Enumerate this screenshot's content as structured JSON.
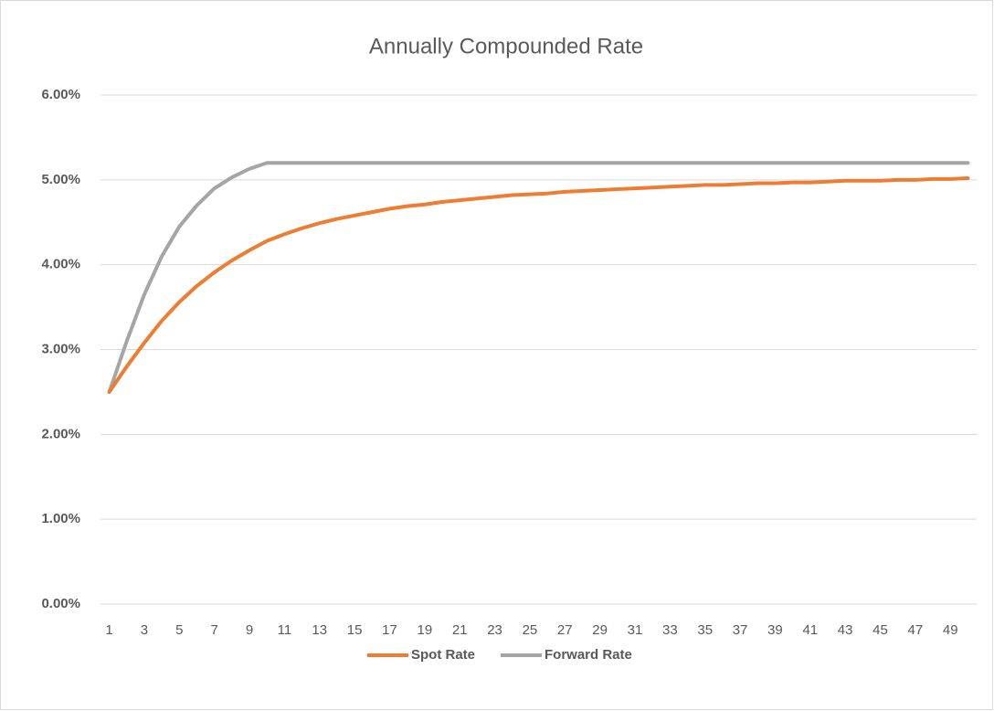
{
  "chart_data": {
    "type": "line",
    "title": "Annually Compounded Rate",
    "categories": [
      "1",
      null,
      "3",
      null,
      "5",
      null,
      "7",
      null,
      "9",
      null,
      "11",
      null,
      "13",
      null,
      "15",
      null,
      "17",
      null,
      "19",
      null,
      "21",
      null,
      "23",
      null,
      "25",
      null,
      "27",
      null,
      "29",
      null,
      "31",
      null,
      "33",
      null,
      "35",
      null,
      "37",
      null,
      "39",
      null,
      "41",
      null,
      "43",
      null,
      "45",
      null,
      "47",
      null,
      "49",
      null
    ],
    "series": [
      {
        "name": "Spot Rate",
        "color": "#ed7d31",
        "values": [
          2.5,
          2.8,
          3.08,
          3.34,
          3.56,
          3.75,
          3.91,
          4.05,
          4.17,
          4.28,
          4.36,
          4.43,
          4.49,
          4.54,
          4.58,
          4.62,
          4.66,
          4.69,
          4.71,
          4.74,
          4.76,
          4.78,
          4.8,
          4.82,
          4.83,
          4.84,
          4.86,
          4.87,
          4.88,
          4.89,
          4.9,
          4.91,
          4.92,
          4.93,
          4.94,
          4.94,
          4.95,
          4.96,
          4.96,
          4.97,
          4.97,
          4.98,
          4.99,
          4.99,
          4.99,
          5.0,
          5.0,
          5.01,
          5.01,
          5.02
        ]
      },
      {
        "name": "Forward Rate",
        "color": "#a5a5a5",
        "values": [
          2.5,
          3.1,
          3.65,
          4.1,
          4.45,
          4.7,
          4.9,
          5.03,
          5.13,
          5.2,
          5.2,
          5.2,
          5.2,
          5.2,
          5.2,
          5.2,
          5.2,
          5.2,
          5.2,
          5.2,
          5.2,
          5.2,
          5.2,
          5.2,
          5.2,
          5.2,
          5.2,
          5.2,
          5.2,
          5.2,
          5.2,
          5.2,
          5.2,
          5.2,
          5.2,
          5.2,
          5.2,
          5.2,
          5.2,
          5.2,
          5.2,
          5.2,
          5.2,
          5.2,
          5.2,
          5.2,
          5.2,
          5.2,
          5.2,
          5.2
        ]
      }
    ],
    "ylim": [
      0,
      6
    ],
    "yticks": [
      {
        "value": 0,
        "label": "0.00%"
      },
      {
        "value": 1,
        "label": "1.00%"
      },
      {
        "value": 2,
        "label": "2.00%"
      },
      {
        "value": 3,
        "label": "3.00%"
      },
      {
        "value": 4,
        "label": "4.00%"
      },
      {
        "value": 5,
        "label": "5.00%"
      },
      {
        "value": 6,
        "label": "6.00%"
      }
    ],
    "grid": true,
    "legend": "bottom"
  }
}
